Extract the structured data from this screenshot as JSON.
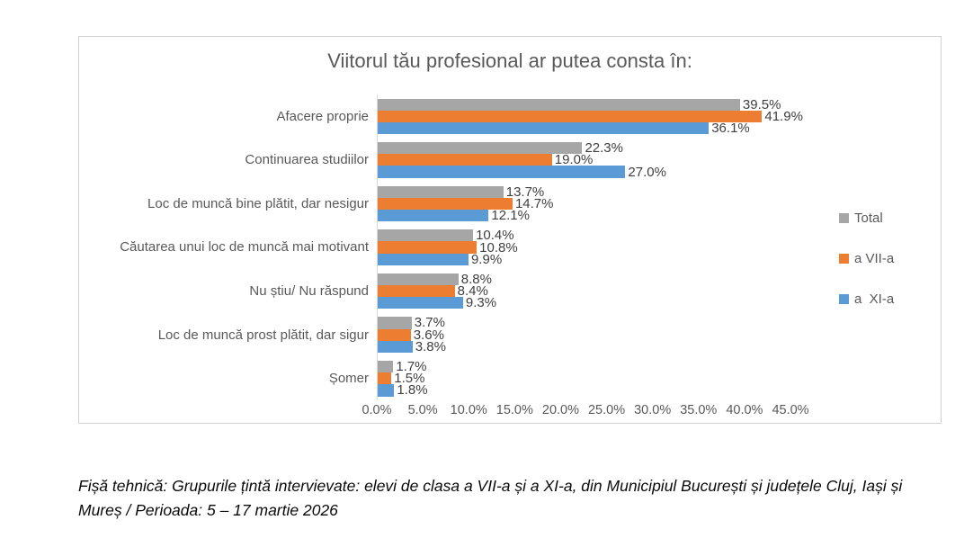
{
  "chart_data": {
    "type": "bar",
    "orientation": "horizontal",
    "title": "Viitorul tău profesional ar putea consta în:",
    "categories": [
      "Afacere proprie",
      "Continuarea studiilor",
      "Loc de muncă bine plătit, dar nesigur",
      "Căutarea unui loc de muncă mai motivant",
      "Nu știu/ Nu răspund",
      "Loc de muncă prost plătit, dar sigur",
      "Șomer"
    ],
    "series": [
      {
        "name": "Total",
        "color": "#A6A6A6",
        "values": [
          39.5,
          22.3,
          13.7,
          10.4,
          8.8,
          3.7,
          1.7
        ]
      },
      {
        "name": "a VII-a",
        "color": "#ED7D31",
        "values": [
          41.9,
          19.0,
          14.7,
          10.8,
          8.4,
          3.6,
          1.5
        ]
      },
      {
        "name": "a  XI-a",
        "color": "#5B9BD5",
        "values": [
          36.1,
          27.0,
          12.1,
          9.9,
          9.3,
          3.8,
          1.8
        ]
      }
    ],
    "x_ticks": [
      "0.0%",
      "5.0%",
      "10.0%",
      "15.0%",
      "20.0%",
      "25.0%",
      "30.0%",
      "35.0%",
      "40.0%",
      "45.0%"
    ],
    "xlim": [
      0,
      45
    ],
    "grid": false,
    "legend_position": "right",
    "value_label_format": "one_decimal_percent"
  },
  "footer": {
    "text": "Fișă tehnică: Grupurile țintă intervievate: elevi de clasa a VII-a și a XI-a, din Municipiul București și județele Cluj, Iași și Mureș / Perioada: 5 – 17 martie 2026"
  }
}
